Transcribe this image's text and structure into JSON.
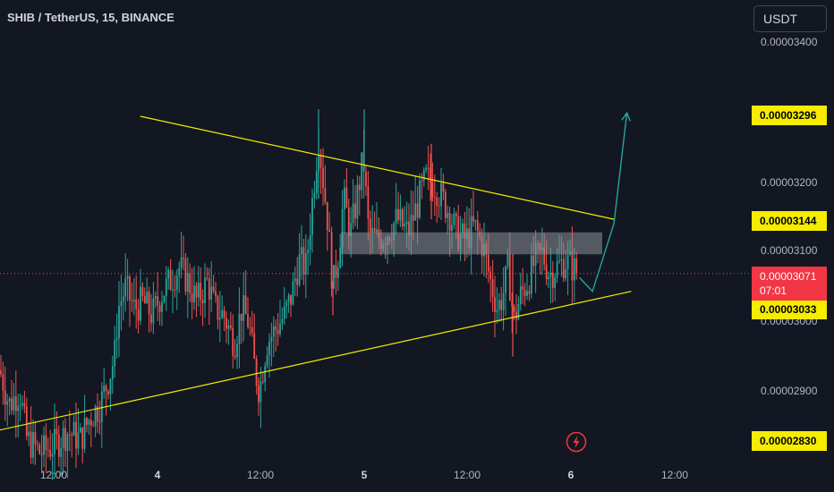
{
  "header": {
    "title": "SHIB / TetherUS, 15, BINANCE",
    "currency_button": "USDT"
  },
  "colors": {
    "background": "#131722",
    "up": "#26a69a",
    "down": "#ef5350",
    "trendline": "#f5ec00",
    "projection": "#26a69a",
    "zone": "#8c8f98",
    "price_tag": "#f23645",
    "highlight_tag": "#f5ec00"
  },
  "chart_data": {
    "type": "candlestick",
    "y_axis": {
      "min": 2.76e-05,
      "max": 3.45e-05,
      "tick_labels": [
        "0.00003400",
        "0.00003200",
        "0.00003100",
        "0.00003000",
        "0.00002900"
      ],
      "highlighted_labels": [
        "0.00003296",
        "0.00003144",
        "0.00003033",
        "0.00002830"
      ],
      "current_price": "0.00003071",
      "countdown": "07:01"
    },
    "x_axis": {
      "tick_labels": [
        "12:00",
        "4",
        "12:00",
        "5",
        "12:00",
        "6",
        "12:00"
      ],
      "bold_labels": [
        "4",
        "5",
        "6"
      ]
    },
    "annotations": {
      "resistance_line": {
        "from": {
          "time": "Day3 22:00",
          "price": 3.3e-05
        },
        "to": {
          "time": "Day6 05:00",
          "price": 3.15e-05
        }
      },
      "support_line": {
        "from": {
          "time": "Day3 16:00",
          "price": 2.835e-05
        },
        "to": {
          "time": "Day6 07:00",
          "price": 3.045e-05
        }
      },
      "zone": {
        "top": 3.131e-05,
        "bottom": 3.099e-05
      },
      "projection_path": [
        {
          "time": "Day6 01:00",
          "price": 3.065e-05
        },
        {
          "time": "Day6 02:30",
          "price": 3.045e-05
        },
        {
          "time": "Day6 05:00",
          "price": 3.144e-05
        },
        {
          "time": "Day6 06:30",
          "price": 3.305e-05
        }
      ]
    },
    "price_path": [
      [
        0,
        2.93e-05
      ],
      [
        10,
        2.88e-05
      ],
      [
        22,
        2.9e-05
      ],
      [
        30,
        2.83e-05
      ],
      [
        45,
        2.81e-05
      ],
      [
        60,
        2.82e-05
      ],
      [
        75,
        2.84e-05
      ],
      [
        90,
        2.83e-05
      ],
      [
        100,
        2.86e-05
      ],
      [
        112,
        2.88e-05
      ],
      [
        122,
        2.92e-05
      ],
      [
        128,
        2.95e-05
      ],
      [
        132,
        3.02e-05
      ],
      [
        140,
        3.05e-05
      ],
      [
        150,
        3.02e-05
      ],
      [
        160,
        3.03e-05
      ],
      [
        170,
        3.01e-05
      ],
      [
        180,
        3.04e-05
      ],
      [
        190,
        3.06e-05
      ],
      [
        200,
        3.08e-05
      ],
      [
        210,
        3.06e-05
      ],
      [
        220,
        3.03e-05
      ],
      [
        232,
        3.06e-05
      ],
      [
        240,
        3.02e-05
      ],
      [
        250,
        3.01e-05
      ],
      [
        262,
        2.97e-05
      ],
      [
        270,
        3.02e-05
      ],
      [
        278,
        3e-05
      ],
      [
        285,
        2.93e-05
      ],
      [
        290,
        2.9e-05
      ],
      [
        298,
        2.97e-05
      ],
      [
        308,
        2.99e-05
      ],
      [
        318,
        3.01e-05
      ],
      [
        326,
        3.04e-05
      ],
      [
        334,
        3.09e-05
      ],
      [
        342,
        3.08e-05
      ],
      [
        350,
        3.19e-05
      ],
      [
        356,
        3.27e-05
      ],
      [
        360,
        3.22e-05
      ],
      [
        366,
        3.15e-05
      ],
      [
        372,
        3.05e-05
      ],
      [
        378,
        3.1e-05
      ],
      [
        384,
        3.18e-05
      ],
      [
        392,
        3.13e-05
      ],
      [
        400,
        3.19e-05
      ],
      [
        406,
        3.24e-05
      ],
      [
        412,
        3.13e-05
      ],
      [
        420,
        3.12e-05
      ],
      [
        432,
        3.13e-05
      ],
      [
        444,
        3.15e-05
      ],
      [
        456,
        3.13e-05
      ],
      [
        466,
        3.17e-05
      ],
      [
        476,
        3.21e-05
      ],
      [
        486,
        3.2e-05
      ],
      [
        494,
        3.18e-05
      ],
      [
        502,
        3.16e-05
      ],
      [
        510,
        3.13e-05
      ],
      [
        520,
        3.12e-05
      ],
      [
        530,
        3.14e-05
      ],
      [
        540,
        3.11e-05
      ],
      [
        548,
        3.06e-05
      ],
      [
        556,
        3.02e-05
      ],
      [
        562,
        3.04e-05
      ],
      [
        568,
        3.08e-05
      ],
      [
        574,
        3e-05
      ],
      [
        582,
        3.04e-05
      ],
      [
        590,
        3.06e-05
      ],
      [
        598,
        3.09e-05
      ],
      [
        606,
        3.1e-05
      ],
      [
        614,
        3.07e-05
      ],
      [
        622,
        3.08e-05
      ],
      [
        632,
        3.09e-05
      ],
      [
        640,
        3.08e-05
      ],
      [
        646,
        3.07e-05
      ]
    ]
  }
}
